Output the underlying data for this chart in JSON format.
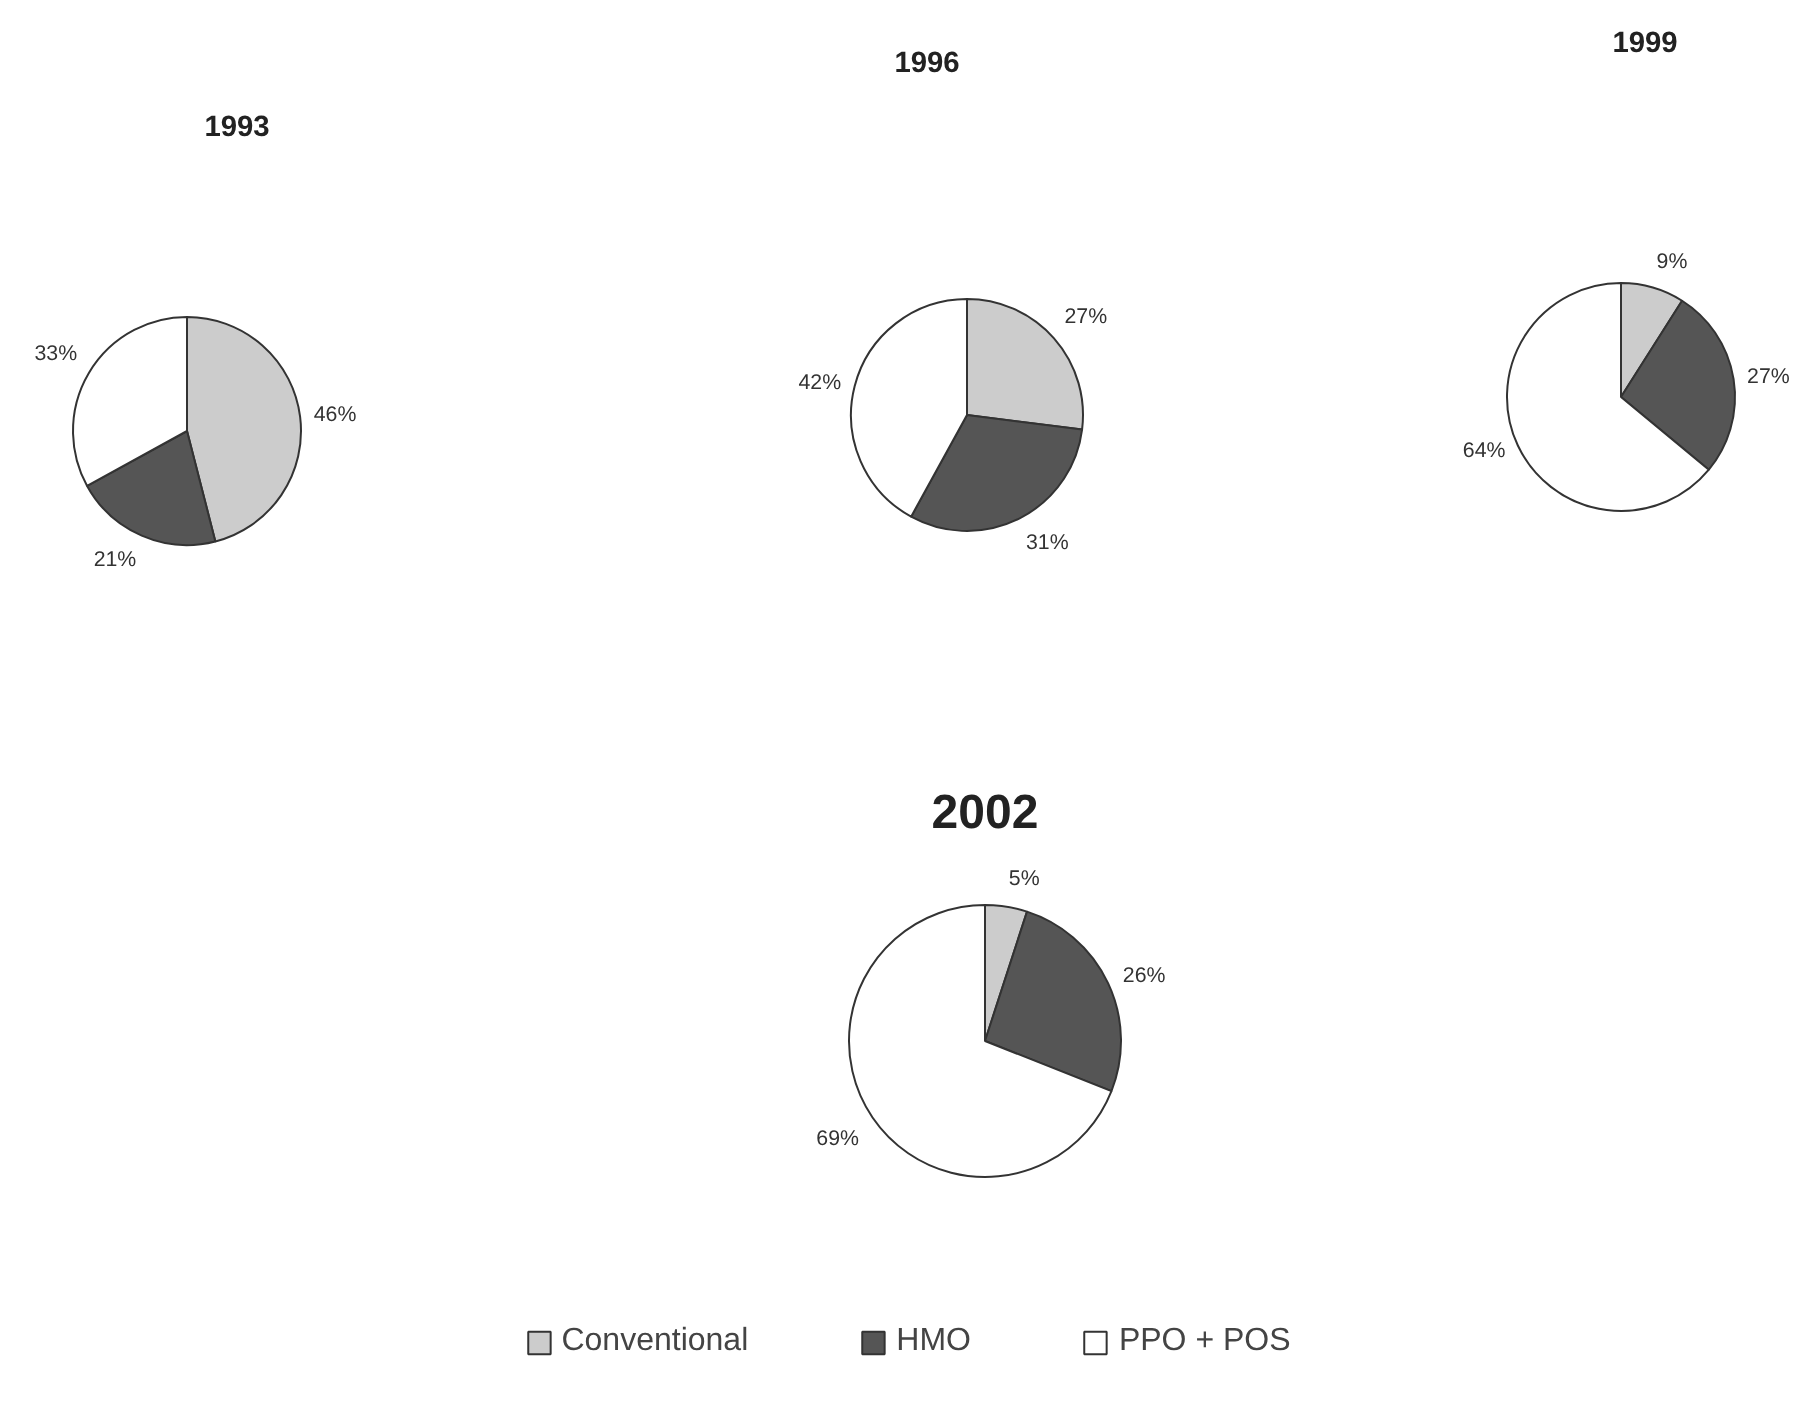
{
  "chart_data": [
    {
      "type": "pie",
      "title": "1993",
      "categories": [
        "Conventional",
        "HMO",
        "PPO + POS"
      ],
      "values": [
        46,
        21,
        33
      ],
      "colors": [
        "#cccccc",
        "#555555",
        "#ffffff"
      ],
      "value_labels": [
        "46%",
        "21%",
        "33%"
      ],
      "legend": "bottom"
    },
    {
      "type": "pie",
      "title": "1996",
      "categories": [
        null,
        null,
        null
      ],
      "values": [
        27,
        31,
        42
      ],
      "colors": [
        "#cccccc",
        "#555555",
        "#ffffff"
      ],
      "value_labels": [
        "27%",
        "31%",
        "42%"
      ]
    },
    {
      "type": "pie",
      "title": "1999",
      "categories": [
        null,
        null,
        null
      ],
      "values": [
        9,
        27,
        64
      ],
      "colors": [
        "#cccccc",
        "#555555",
        "#ffffff"
      ],
      "value_labels": [
        "9%",
        "27%",
        "64%"
      ]
    },
    {
      "type": "pie",
      "title": "2002",
      "categories": [
        null,
        null,
        null
      ],
      "values": [
        5,
        26,
        69
      ],
      "colors": [
        "#cccccc",
        "#555555",
        "#ffffff"
      ],
      "value_labels": [
        "5%",
        "26%",
        "69%"
      ]
    }
  ]
}
